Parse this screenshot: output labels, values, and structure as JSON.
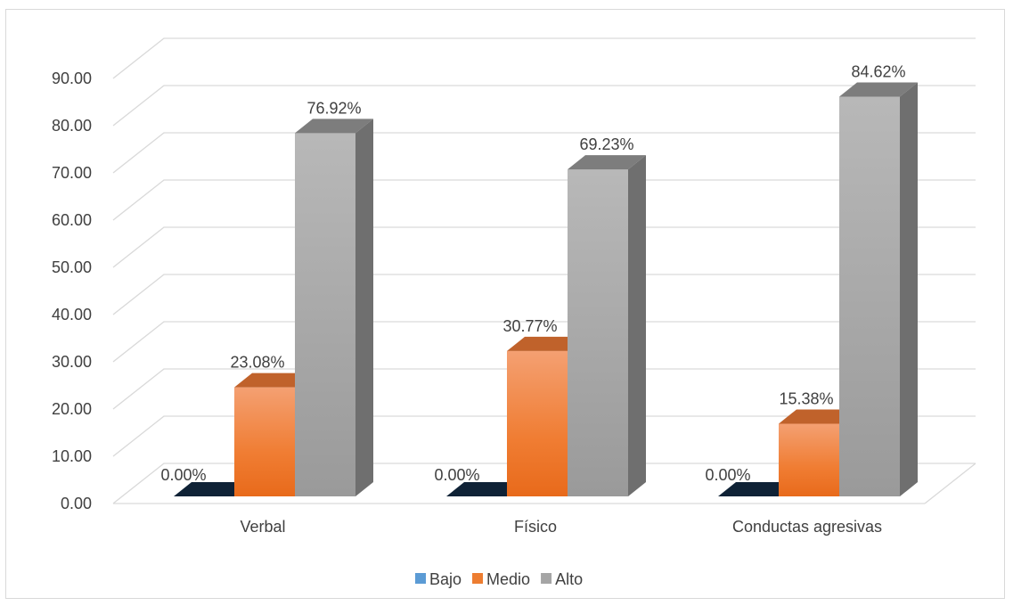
{
  "chart_data": {
    "type": "bar",
    "style": "3d-clustered-column",
    "categories": [
      "Verbal",
      "Físico",
      "Conductas agresivas"
    ],
    "series": [
      {
        "name": "Bajo",
        "values": [
          0.0,
          0.0,
          0.0
        ],
        "labels": [
          "0.00%",
          "0.00%",
          "0.00%"
        ],
        "color": "#5b9bd5"
      },
      {
        "name": "Medio",
        "values": [
          23.08,
          30.77,
          15.38
        ],
        "labels": [
          "23.08%",
          "30.77%",
          "15.38%"
        ],
        "color": "#ed7d31"
      },
      {
        "name": "Alto",
        "values": [
          76.92,
          69.23,
          84.62
        ],
        "labels": [
          "76.92%",
          "69.23%",
          "84.62%"
        ],
        "color": "#a5a5a5"
      }
    ],
    "y_ticks": [
      "0.00",
      "10.00",
      "20.00",
      "30.00",
      "40.00",
      "50.00",
      "60.00",
      "70.00",
      "80.00",
      "90.00"
    ],
    "ylim": [
      0,
      90
    ],
    "grid": true,
    "legend_position": "bottom"
  }
}
